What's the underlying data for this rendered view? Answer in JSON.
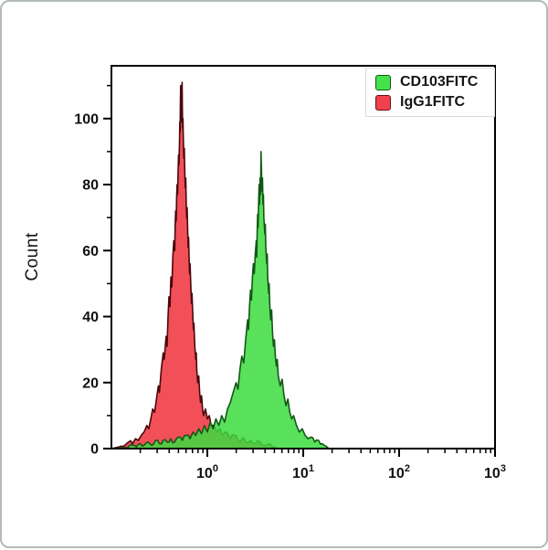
{
  "figure": {
    "ylabel": "Count",
    "background_color": "#ffffff",
    "frame_color": "#000000",
    "outer_border_color": "#b3bbb5"
  },
  "legend": {
    "items": [
      {
        "label": "CD103FITC",
        "swatch_fill": "#45e24c",
        "swatch_border": "#0f5a14"
      },
      {
        "label": "IgG1FITC",
        "swatch_fill": "#f1414e",
        "swatch_border": "#6b0d14"
      }
    ]
  },
  "chart_data": {
    "type": "area",
    "subtype": "flow_cytometry_overlay_histogram",
    "title": "",
    "xlabel": "",
    "ylabel": "Count",
    "xscale": "log10",
    "xlim_log10": [
      -1,
      3
    ],
    "ylim": [
      0,
      116
    ],
    "x_major_tick_exponents": [
      0,
      1,
      2,
      3
    ],
    "x_tick_base": "10",
    "y_major_ticks": [
      0,
      20,
      40,
      60,
      80,
      100
    ],
    "y_minor_step": 10,
    "grid": false,
    "legend_position": "top-right-inside",
    "series": [
      {
        "name": "IgG1FITC",
        "fill": "#f25059",
        "stroke": "#4a080c",
        "fill_opacity": 1.0,
        "peak_x_value": 0.52,
        "peak_count": 111,
        "points_log10x_count": [
          [
            -1.0,
            0
          ],
          [
            -0.92,
            0.5
          ],
          [
            -0.86,
            1
          ],
          [
            -0.82,
            2
          ],
          [
            -0.78,
            1.5
          ],
          [
            -0.75,
            3
          ],
          [
            -0.72,
            2.5
          ],
          [
            -0.69,
            4
          ],
          [
            -0.66,
            5
          ],
          [
            -0.63,
            7
          ],
          [
            -0.61,
            6
          ],
          [
            -0.59,
            9
          ],
          [
            -0.57,
            12
          ],
          [
            -0.55,
            11
          ],
          [
            -0.53,
            15
          ],
          [
            -0.51,
            19
          ],
          [
            -0.5,
            17
          ],
          [
            -0.48,
            24
          ],
          [
            -0.46,
            29
          ],
          [
            -0.45,
            27
          ],
          [
            -0.43,
            34
          ],
          [
            -0.42,
            31
          ],
          [
            -0.41,
            40
          ],
          [
            -0.4,
            46
          ],
          [
            -0.39,
            43
          ],
          [
            -0.38,
            52
          ],
          [
            -0.37,
            49
          ],
          [
            -0.36,
            58
          ],
          [
            -0.35,
            63
          ],
          [
            -0.34,
            60
          ],
          [
            -0.335,
            68
          ],
          [
            -0.33,
            72
          ],
          [
            -0.325,
            69
          ],
          [
            -0.32,
            76
          ],
          [
            -0.315,
            80
          ],
          [
            -0.31,
            77
          ],
          [
            -0.305,
            84
          ],
          [
            -0.3,
            89
          ],
          [
            -0.295,
            86
          ],
          [
            -0.29,
            94
          ],
          [
            -0.287,
            99
          ],
          [
            -0.284,
            96
          ],
          [
            -0.281,
            104
          ],
          [
            -0.278,
            110
          ],
          [
            -0.275,
            105
          ],
          [
            -0.272,
            99
          ],
          [
            -0.269,
            103
          ],
          [
            -0.266,
            108
          ],
          [
            -0.263,
            111
          ],
          [
            -0.26,
            102
          ],
          [
            -0.257,
            97
          ],
          [
            -0.254,
            100
          ],
          [
            -0.25,
            93
          ],
          [
            -0.245,
            88
          ],
          [
            -0.24,
            91
          ],
          [
            -0.235,
            84
          ],
          [
            -0.23,
            79
          ],
          [
            -0.225,
            82
          ],
          [
            -0.22,
            74
          ],
          [
            -0.215,
            70
          ],
          [
            -0.21,
            73
          ],
          [
            -0.205,
            66
          ],
          [
            -0.2,
            61
          ],
          [
            -0.195,
            64
          ],
          [
            -0.19,
            57
          ],
          [
            -0.185,
            53
          ],
          [
            -0.18,
            56
          ],
          [
            -0.17,
            48
          ],
          [
            -0.165,
            44
          ],
          [
            -0.16,
            47
          ],
          [
            -0.15,
            39
          ],
          [
            -0.145,
            36
          ],
          [
            -0.14,
            38
          ],
          [
            -0.13,
            31
          ],
          [
            -0.12,
            27
          ],
          [
            -0.115,
            29
          ],
          [
            -0.11,
            24
          ],
          [
            -0.1,
            20
          ],
          [
            -0.09,
            22
          ],
          [
            -0.08,
            17
          ],
          [
            -0.07,
            14
          ],
          [
            -0.06,
            16
          ],
          [
            -0.05,
            12
          ],
          [
            -0.04,
            10
          ],
          [
            -0.02,
            12
          ],
          [
            0,
            9
          ],
          [
            0.02,
            10
          ],
          [
            0.04,
            7
          ],
          [
            0.07,
            7
          ],
          [
            0.1,
            5
          ],
          [
            0.13,
            6
          ],
          [
            0.16,
            4
          ],
          [
            0.2,
            5
          ],
          [
            0.24,
            3
          ],
          [
            0.28,
            4
          ],
          [
            0.32,
            2.5
          ],
          [
            0.36,
            3
          ],
          [
            0.4,
            2
          ],
          [
            0.45,
            2.5
          ],
          [
            0.5,
            1.5
          ],
          [
            0.55,
            2
          ],
          [
            0.6,
            1
          ],
          [
            0.65,
            1.5
          ],
          [
            0.7,
            0.5
          ],
          [
            0.74,
            0
          ]
        ]
      },
      {
        "name": "CD103FITC",
        "fill": "#3cdc40",
        "stroke": "#125816",
        "fill_opacity": 0.85,
        "peak_x_value": 3.6,
        "peak_count": 90,
        "points_log10x_count": [
          [
            -1.0,
            0
          ],
          [
            -0.85,
            0.3
          ],
          [
            -0.78,
            1
          ],
          [
            -0.74,
            0.5
          ],
          [
            -0.7,
            1.5
          ],
          [
            -0.66,
            1
          ],
          [
            -0.62,
            2
          ],
          [
            -0.58,
            1
          ],
          [
            -0.54,
            2.5
          ],
          [
            -0.5,
            1.5
          ],
          [
            -0.46,
            2.5
          ],
          [
            -0.42,
            2
          ],
          [
            -0.38,
            3
          ],
          [
            -0.34,
            2
          ],
          [
            -0.3,
            3.5
          ],
          [
            -0.26,
            2.5
          ],
          [
            -0.22,
            4
          ],
          [
            -0.18,
            3
          ],
          [
            -0.15,
            5
          ],
          [
            -0.12,
            4
          ],
          [
            -0.09,
            6
          ],
          [
            -0.06,
            4.5
          ],
          [
            -0.03,
            7
          ],
          [
            0,
            5
          ],
          [
            0.03,
            8
          ],
          [
            0.06,
            6
          ],
          [
            0.09,
            9
          ],
          [
            0.12,
            7
          ],
          [
            0.15,
            10
          ],
          [
            0.18,
            8
          ],
          [
            0.21,
            12
          ],
          [
            0.24,
            14
          ],
          [
            0.27,
            17
          ],
          [
            0.3,
            20
          ],
          [
            0.32,
            18
          ],
          [
            0.34,
            24
          ],
          [
            0.36,
            28
          ],
          [
            0.38,
            26
          ],
          [
            0.4,
            33
          ],
          [
            0.42,
            39
          ],
          [
            0.43,
            36
          ],
          [
            0.44,
            43
          ],
          [
            0.45,
            48
          ],
          [
            0.46,
            45
          ],
          [
            0.47,
            52
          ],
          [
            0.48,
            56
          ],
          [
            0.49,
            53
          ],
          [
            0.5,
            59
          ],
          [
            0.51,
            63
          ],
          [
            0.515,
            58
          ],
          [
            0.52,
            66
          ],
          [
            0.525,
            71
          ],
          [
            0.53,
            67
          ],
          [
            0.535,
            75
          ],
          [
            0.54,
            80
          ],
          [
            0.545,
            74
          ],
          [
            0.55,
            82
          ],
          [
            0.555,
            77
          ],
          [
            0.56,
            90
          ],
          [
            0.565,
            84
          ],
          [
            0.57,
            78
          ],
          [
            0.575,
            82
          ],
          [
            0.58,
            74
          ],
          [
            0.585,
            77
          ],
          [
            0.59,
            70
          ],
          [
            0.6,
            65
          ],
          [
            0.605,
            68
          ],
          [
            0.61,
            61
          ],
          [
            0.62,
            56
          ],
          [
            0.625,
            59
          ],
          [
            0.63,
            52
          ],
          [
            0.64,
            47
          ],
          [
            0.645,
            50
          ],
          [
            0.65,
            44
          ],
          [
            0.66,
            39
          ],
          [
            0.67,
            42
          ],
          [
            0.68,
            35
          ],
          [
            0.69,
            31
          ],
          [
            0.7,
            33
          ],
          [
            0.71,
            28
          ],
          [
            0.72,
            25
          ],
          [
            0.73,
            27
          ],
          [
            0.74,
            22
          ],
          [
            0.76,
            19
          ],
          [
            0.78,
            21
          ],
          [
            0.8,
            16
          ],
          [
            0.82,
            13
          ],
          [
            0.84,
            15
          ],
          [
            0.86,
            11
          ],
          [
            0.88,
            9
          ],
          [
            0.9,
            10
          ],
          [
            0.93,
            7
          ],
          [
            0.96,
            5
          ],
          [
            0.99,
            6
          ],
          [
            1.02,
            4
          ],
          [
            1.05,
            3
          ],
          [
            1.08,
            3.5
          ],
          [
            1.12,
            2
          ],
          [
            1.16,
            2.5
          ],
          [
            1.2,
            1.5
          ],
          [
            1.24,
            0.7
          ],
          [
            1.28,
            0
          ],
          [
            3,
            0
          ]
        ]
      }
    ]
  }
}
